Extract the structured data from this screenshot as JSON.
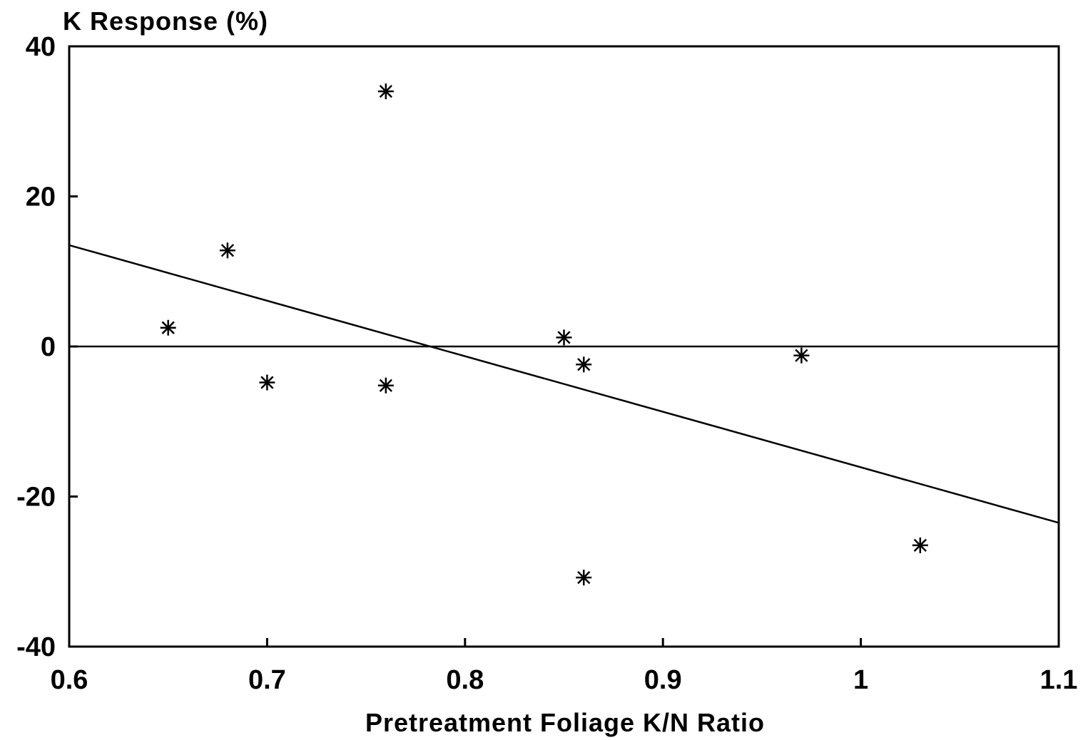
{
  "chart_data": {
    "type": "scatter",
    "title": "",
    "ylabel": "K Response (%)",
    "xlabel": "Pretreatment Foliage K/N Ratio",
    "xlim": [
      0.6,
      1.1
    ],
    "ylim": [
      -40,
      40
    ],
    "x_ticks": [
      0.6,
      0.7,
      0.8,
      0.9,
      1,
      1.1
    ],
    "x_tick_labels": [
      "0.6",
      "0.7",
      "0.8",
      "0.9",
      "1",
      "1.1"
    ],
    "y_ticks": [
      40,
      20,
      0,
      -20,
      -40
    ],
    "y_tick_labels": [
      "40",
      "20",
      "0",
      "-20",
      "-40"
    ],
    "grid": false,
    "marker": "asterisk",
    "points": [
      {
        "x": 0.65,
        "y": 2.5
      },
      {
        "x": 0.68,
        "y": 12.8
      },
      {
        "x": 0.7,
        "y": -4.8
      },
      {
        "x": 0.76,
        "y": 34.0
      },
      {
        "x": 0.76,
        "y": -5.2
      },
      {
        "x": 0.85,
        "y": 1.2
      },
      {
        "x": 0.86,
        "y": -2.4
      },
      {
        "x": 0.86,
        "y": -30.8
      },
      {
        "x": 0.97,
        "y": -1.2
      },
      {
        "x": 1.03,
        "y": -26.5
      }
    ],
    "reference_line": {
      "y": 0
    },
    "trend_line": {
      "x": [
        0.6,
        1.1
      ],
      "y": [
        13.5,
        -23.5
      ]
    }
  }
}
